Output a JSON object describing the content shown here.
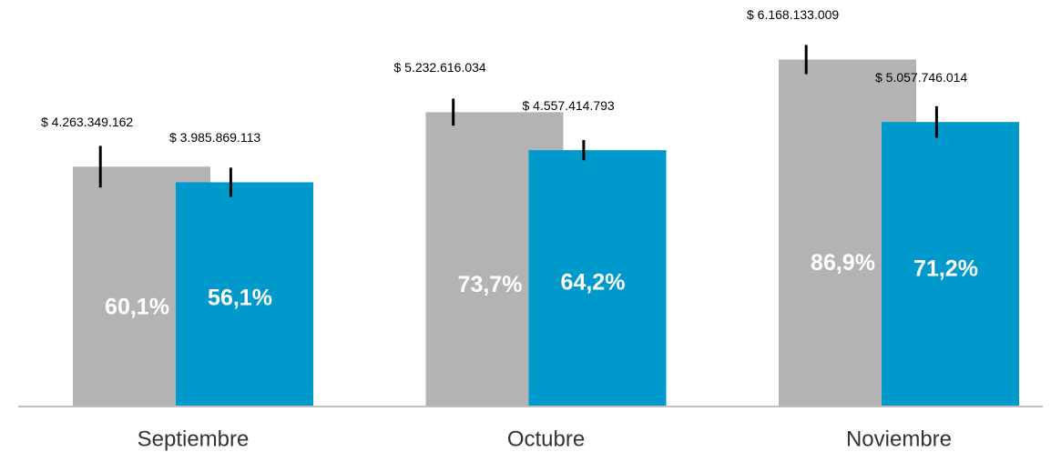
{
  "chart_data": {
    "type": "bar",
    "categories": [
      "Septiembre",
      "Octubre",
      "Noviembre"
    ],
    "series": [
      {
        "color": "#b3b3b3",
        "values": [
          4263349162,
          5232616034,
          6168133009
        ],
        "value_labels": [
          "$ 4.263.349.162",
          "$ 5.232.616.034",
          "$ 6.168.133.009"
        ],
        "errors": [
          370000000,
          240000000,
          260000000
        ],
        "percentages": [
          60.1,
          73.7,
          86.9
        ],
        "percentage_labels": [
          "60,1%",
          "73,7%",
          "86,9%"
        ]
      },
      {
        "color": "#0099cc",
        "values": [
          3985869113,
          4557414793,
          5057746014
        ],
        "value_labels": [
          "$ 3.985.869.113",
          "$ 4.557.414.793",
          "$ 5.057.746.014"
        ],
        "errors": [
          260000000,
          180000000,
          280000000
        ],
        "percentages": [
          56.1,
          64.2,
          71.2
        ],
        "percentage_labels": [
          "56,1%",
          "64,2%",
          "71,2%"
        ]
      }
    ],
    "ylim": [
      0,
      7000000000
    ]
  }
}
